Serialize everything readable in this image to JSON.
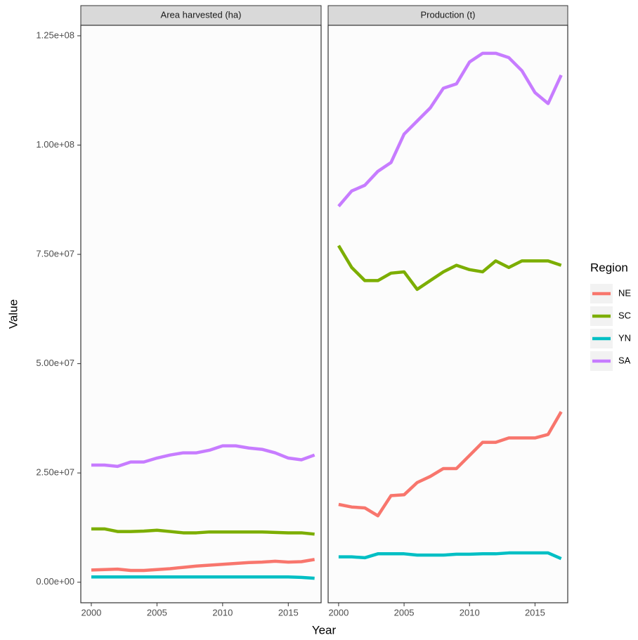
{
  "chart_data": {
    "type": "line",
    "ylabel": "Value",
    "xlabel": "Year",
    "legend_title": "Region",
    "x": [
      2000,
      2001,
      2002,
      2003,
      2004,
      2005,
      2006,
      2007,
      2008,
      2009,
      2010,
      2011,
      2012,
      2013,
      2014,
      2015,
      2016,
      2017
    ],
    "xlim": [
      1999.2,
      2017.5
    ],
    "xticks": [
      2000,
      2005,
      2010,
      2015
    ],
    "ylim": [
      -4700000,
      127400000
    ],
    "yticks": [
      {
        "value": 0,
        "label": "0.00e+00"
      },
      {
        "value": 25000000,
        "label": "2.50e+07"
      },
      {
        "value": 50000000,
        "label": "5.00e+07"
      },
      {
        "value": 75000000,
        "label": "7.50e+07"
      },
      {
        "value": 100000000,
        "label": "1.00e+08"
      },
      {
        "value": 125000000,
        "label": "1.25e+08"
      }
    ],
    "series": [
      {
        "name": "NE",
        "color": "#f8766d"
      },
      {
        "name": "SC",
        "color": "#7cae00"
      },
      {
        "name": "YN",
        "color": "#00bfc4"
      },
      {
        "name": "SA",
        "color": "#c77cff"
      }
    ],
    "panels": [
      {
        "title": "Area harvested (ha)",
        "values": [
          [
            2800000,
            2900000,
            3000000,
            2700000,
            2700000,
            2900000,
            3100000,
            3400000,
            3700000,
            3900000,
            4100000,
            4300000,
            4500000,
            4600000,
            4800000,
            4600000,
            4700000,
            5200000
          ],
          [
            12200000,
            12200000,
            11600000,
            11600000,
            11700000,
            11900000,
            11600000,
            11300000,
            11300000,
            11500000,
            11500000,
            11500000,
            11500000,
            11500000,
            11400000,
            11300000,
            11300000,
            11000000
          ],
          [
            1200000,
            1200000,
            1200000,
            1200000,
            1200000,
            1200000,
            1200000,
            1200000,
            1200000,
            1200000,
            1200000,
            1200000,
            1200000,
            1200000,
            1200000,
            1200000,
            1100000,
            900000
          ],
          [
            26800000,
            26800000,
            26500000,
            27500000,
            27500000,
            28400000,
            29100000,
            29600000,
            29600000,
            30200000,
            31200000,
            31200000,
            30700000,
            30400000,
            29600000,
            28400000,
            28000000,
            29100000
          ]
        ]
      },
      {
        "title": "Production (t)",
        "values": [
          [
            17800000,
            17200000,
            17000000,
            15200000,
            19800000,
            20000000,
            22800000,
            24200000,
            26000000,
            26000000,
            29000000,
            32000000,
            32000000,
            33000000,
            33000000,
            33000000,
            33800000,
            39000000
          ],
          [
            77000000,
            72000000,
            69000000,
            69000000,
            70700000,
            71000000,
            67000000,
            69000000,
            71000000,
            72500000,
            71500000,
            71000000,
            73500000,
            72000000,
            73500000,
            73500000,
            73500000,
            72500000
          ],
          [
            5800000,
            5800000,
            5600000,
            6500000,
            6500000,
            6500000,
            6200000,
            6200000,
            6200000,
            6400000,
            6400000,
            6500000,
            6500000,
            6700000,
            6700000,
            6700000,
            6700000,
            5400000
          ],
          [
            86000000,
            89500000,
            90800000,
            94000000,
            96000000,
            102500000,
            105500000,
            108500000,
            113000000,
            114000000,
            119000000,
            121000000,
            121000000,
            120000000,
            117000000,
            112000000,
            109500000,
            116000000
          ]
        ]
      }
    ]
  }
}
